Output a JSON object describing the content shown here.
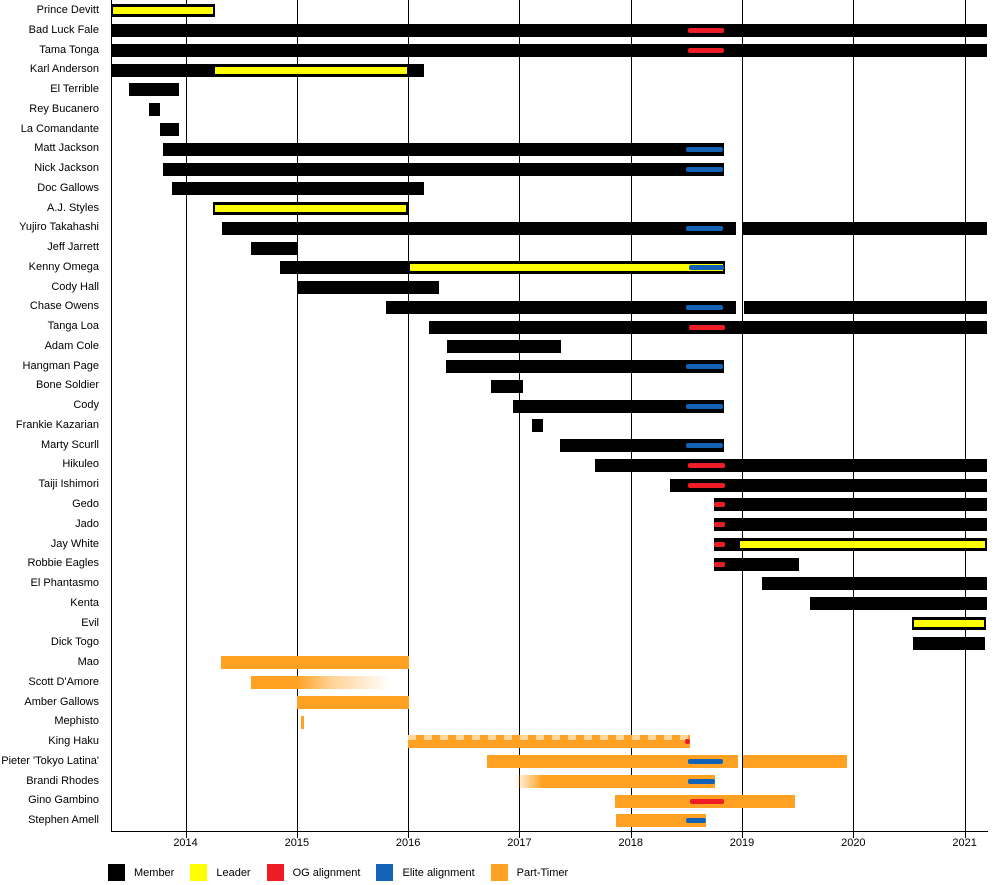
{
  "chart_data": {
    "type": "gantt",
    "title": "",
    "x_axis": {
      "min": 2013.33,
      "max": 2021.21,
      "tick_years": [
        2014,
        2015,
        2016,
        2017,
        2018,
        2019,
        2020,
        2021
      ],
      "grid": "vertical-lines"
    },
    "colors": {
      "member": "#000000",
      "leader": "#ffff00",
      "og": "#ee1c25",
      "elite": "#1263b5",
      "part": "#ffa224"
    },
    "legend": [
      {
        "key": "member",
        "label": "Member"
      },
      {
        "key": "leader",
        "label": "Leader"
      },
      {
        "key": "og",
        "label": "OG alignment"
      },
      {
        "key": "elite",
        "label": "Elite alignment"
      },
      {
        "key": "part",
        "label": "Part-Timer"
      }
    ],
    "rows": [
      {
        "label": "Prince Devitt",
        "segments": [
          {
            "start": 2013.33,
            "end": 2014.26,
            "type": "leader"
          }
        ],
        "overlays": []
      },
      {
        "label": "Bad Luck Fale",
        "segments": [
          {
            "start": 2013.33,
            "end": 2021.2,
            "type": "member"
          }
        ],
        "overlays": [
          {
            "start": 2018.51,
            "end": 2018.84,
            "type": "og"
          }
        ]
      },
      {
        "label": "Tama Tonga",
        "segments": [
          {
            "start": 2013.33,
            "end": 2021.2,
            "type": "member"
          }
        ],
        "overlays": [
          {
            "start": 2018.51,
            "end": 2018.84,
            "type": "og"
          }
        ]
      },
      {
        "label": "Karl Anderson",
        "segments": [
          {
            "start": 2013.33,
            "end": 2014.25,
            "type": "member"
          },
          {
            "start": 2014.25,
            "end": 2016.01,
            "type": "leader"
          },
          {
            "start": 2016.01,
            "end": 2016.14,
            "type": "member"
          }
        ],
        "overlays": []
      },
      {
        "label": "El Terrible",
        "segments": [
          {
            "start": 2013.49,
            "end": 2013.94,
            "type": "member"
          }
        ],
        "overlays": []
      },
      {
        "label": "Rey Bucanero",
        "segments": [
          {
            "start": 2013.67,
            "end": 2013.77,
            "type": "member"
          }
        ],
        "overlays": []
      },
      {
        "label": "La Comandante",
        "segments": [
          {
            "start": 2013.77,
            "end": 2013.94,
            "type": "member"
          }
        ],
        "overlays": []
      },
      {
        "label": "Matt Jackson",
        "segments": [
          {
            "start": 2013.8,
            "end": 2018.84,
            "type": "member"
          }
        ],
        "overlays": [
          {
            "start": 2018.5,
            "end": 2018.83,
            "type": "elite"
          }
        ]
      },
      {
        "label": "Nick Jackson",
        "segments": [
          {
            "start": 2013.8,
            "end": 2018.84,
            "type": "member"
          }
        ],
        "overlays": [
          {
            "start": 2018.5,
            "end": 2018.83,
            "type": "elite"
          }
        ]
      },
      {
        "label": "Doc Gallows",
        "segments": [
          {
            "start": 2013.88,
            "end": 2016.14,
            "type": "member"
          }
        ],
        "overlays": []
      },
      {
        "label": "A.J. Styles",
        "segments": [
          {
            "start": 2014.25,
            "end": 2016.0,
            "type": "leader"
          }
        ],
        "overlays": []
      },
      {
        "label": "Yujiro Takahashi",
        "segments": [
          {
            "start": 2014.33,
            "end": 2018.95,
            "type": "member"
          },
          {
            "start": 2019.01,
            "end": 2021.2,
            "type": "member"
          }
        ],
        "overlays": [
          {
            "start": 2018.5,
            "end": 2018.83,
            "type": "elite"
          }
        ]
      },
      {
        "label": "Jeff Jarrett",
        "segments": [
          {
            "start": 2014.59,
            "end": 2015.0,
            "type": "member"
          }
        ],
        "overlays": []
      },
      {
        "label": "Kenny Omega",
        "segments": [
          {
            "start": 2014.85,
            "end": 2016.0,
            "type": "member"
          },
          {
            "start": 2016.0,
            "end": 2018.85,
            "type": "leader"
          }
        ],
        "overlays": [
          {
            "start": 2018.52,
            "end": 2018.84,
            "type": "elite"
          }
        ]
      },
      {
        "label": "Cody Hall",
        "segments": [
          {
            "start": 2015.0,
            "end": 2016.28,
            "type": "member"
          }
        ],
        "overlays": []
      },
      {
        "label": "Chase Owens",
        "segments": [
          {
            "start": 2015.8,
            "end": 2018.95,
            "type": "member"
          },
          {
            "start": 2019.02,
            "end": 2021.2,
            "type": "member"
          }
        ],
        "overlays": [
          {
            "start": 2018.5,
            "end": 2018.83,
            "type": "elite"
          }
        ]
      },
      {
        "label": "Tanga Loa",
        "segments": [
          {
            "start": 2016.19,
            "end": 2021.2,
            "type": "member"
          }
        ],
        "overlays": [
          {
            "start": 2018.52,
            "end": 2018.85,
            "type": "og"
          }
        ]
      },
      {
        "label": "Adam Cole",
        "segments": [
          {
            "start": 2016.35,
            "end": 2017.37,
            "type": "member"
          }
        ],
        "overlays": []
      },
      {
        "label": "Hangman Page",
        "segments": [
          {
            "start": 2016.34,
            "end": 2018.84,
            "type": "member"
          }
        ],
        "overlays": [
          {
            "start": 2018.5,
            "end": 2018.83,
            "type": "elite"
          }
        ]
      },
      {
        "label": "Bone Soldier",
        "segments": [
          {
            "start": 2016.74,
            "end": 2017.03,
            "type": "member"
          }
        ],
        "overlays": []
      },
      {
        "label": "Cody",
        "segments": [
          {
            "start": 2016.94,
            "end": 2018.84,
            "type": "member"
          }
        ],
        "overlays": [
          {
            "start": 2018.5,
            "end": 2018.83,
            "type": "elite"
          }
        ]
      },
      {
        "label": "Frankie Kazarian",
        "segments": [
          {
            "start": 2017.11,
            "end": 2017.21,
            "type": "member"
          }
        ],
        "overlays": []
      },
      {
        "label": "Marty Scurll",
        "segments": [
          {
            "start": 2017.36,
            "end": 2018.84,
            "type": "member"
          }
        ],
        "overlays": [
          {
            "start": 2018.5,
            "end": 2018.83,
            "type": "elite"
          }
        ]
      },
      {
        "label": "Hikuleo",
        "segments": [
          {
            "start": 2017.68,
            "end": 2021.2,
            "type": "member"
          }
        ],
        "overlays": [
          {
            "start": 2018.51,
            "end": 2018.85,
            "type": "og"
          }
        ]
      },
      {
        "label": "Taiji Ishimori",
        "segments": [
          {
            "start": 2018.35,
            "end": 2021.2,
            "type": "member"
          }
        ],
        "overlays": [
          {
            "start": 2018.51,
            "end": 2018.85,
            "type": "og"
          }
        ]
      },
      {
        "label": "Gedo",
        "segments": [
          {
            "start": 2018.75,
            "end": 2021.2,
            "type": "member"
          }
        ],
        "overlays": [
          {
            "start": 2018.75,
            "end": 2018.85,
            "type": "og"
          }
        ]
      },
      {
        "label": "Jado",
        "segments": [
          {
            "start": 2018.75,
            "end": 2021.2,
            "type": "member"
          }
        ],
        "overlays": [
          {
            "start": 2018.75,
            "end": 2018.85,
            "type": "og"
          }
        ]
      },
      {
        "label": "Jay White",
        "segments": [
          {
            "start": 2018.75,
            "end": 2018.96,
            "type": "member"
          },
          {
            "start": 2018.96,
            "end": 2021.2,
            "type": "leader"
          }
        ],
        "overlays": [
          {
            "start": 2018.75,
            "end": 2018.85,
            "type": "og"
          }
        ]
      },
      {
        "label": "Robbie Eagles",
        "segments": [
          {
            "start": 2018.75,
            "end": 2019.51,
            "type": "member"
          }
        ],
        "overlays": [
          {
            "start": 2018.75,
            "end": 2018.85,
            "type": "og"
          }
        ]
      },
      {
        "label": "El Phantasmo",
        "segments": [
          {
            "start": 2019.18,
            "end": 2021.2,
            "type": "member"
          }
        ],
        "overlays": []
      },
      {
        "label": "Kenta",
        "segments": [
          {
            "start": 2019.61,
            "end": 2021.2,
            "type": "member"
          }
        ],
        "overlays": []
      },
      {
        "label": "Evil",
        "segments": [
          {
            "start": 2020.53,
            "end": 2021.19,
            "type": "leader"
          }
        ],
        "overlays": []
      },
      {
        "label": "Dick Togo",
        "segments": [
          {
            "start": 2020.54,
            "end": 2021.18,
            "type": "member"
          }
        ],
        "overlays": []
      },
      {
        "label": "Mao",
        "segments": [
          {
            "start": 2014.32,
            "end": 2016.01,
            "type": "part"
          }
        ],
        "overlays": []
      },
      {
        "label": "Scott D'Amore",
        "segments": [
          {
            "start": 2014.59,
            "end": 2015.0,
            "type": "part"
          },
          {
            "start": 2015.0,
            "end": 2015.84,
            "type": "part_fade_right"
          }
        ],
        "overlays": []
      },
      {
        "label": "Amber Gallows",
        "segments": [
          {
            "start": 2015.0,
            "end": 2016.01,
            "type": "part"
          }
        ],
        "overlays": []
      },
      {
        "label": "Mephisto",
        "segments": [
          {
            "start": 2015.04,
            "end": 2015.06,
            "type": "part"
          }
        ],
        "overlays": []
      },
      {
        "label": "King Haku",
        "segments": [
          {
            "start": 2016.0,
            "end": 2018.53,
            "type": "part_textured"
          }
        ],
        "overlays": [
          {
            "start": 2018.49,
            "end": 2018.53,
            "type": "og"
          }
        ]
      },
      {
        "label": "Pieter 'Tokyo Latina'",
        "segments": [
          {
            "start": 2016.71,
            "end": 2018.96,
            "type": "part"
          },
          {
            "start": 2019.01,
            "end": 2019.94,
            "type": "part"
          }
        ],
        "overlays": [
          {
            "start": 2018.51,
            "end": 2018.83,
            "type": "elite"
          }
        ]
      },
      {
        "label": "Brandi Rhodes",
        "segments": [
          {
            "start": 2016.95,
            "end": 2018.76,
            "type": "part_fade_left"
          }
        ],
        "overlays": [
          {
            "start": 2018.51,
            "end": 2018.76,
            "type": "elite"
          }
        ]
      },
      {
        "label": "Gino Gambino",
        "segments": [
          {
            "start": 2017.86,
            "end": 2019.48,
            "type": "part"
          }
        ],
        "overlays": [
          {
            "start": 2018.53,
            "end": 2018.84,
            "type": "og"
          }
        ]
      },
      {
        "label": "Stephen Amell",
        "segments": [
          {
            "start": 2017.87,
            "end": 2018.68,
            "type": "part"
          }
        ],
        "overlays": [
          {
            "start": 2018.5,
            "end": 2018.68,
            "type": "elite"
          }
        ]
      }
    ]
  }
}
